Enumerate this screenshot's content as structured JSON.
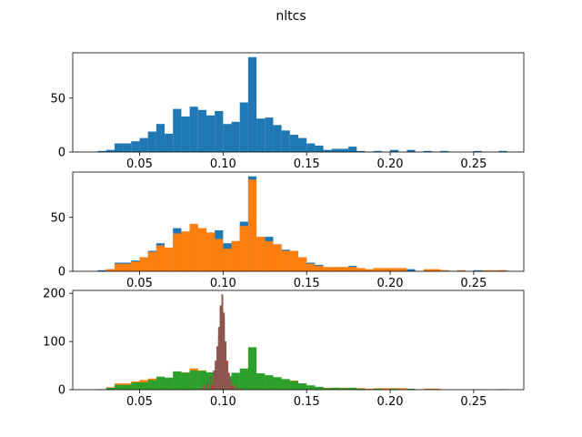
{
  "figure": {
    "title": "nltcs"
  },
  "chart_data": [
    {
      "type": "histogram",
      "panel": 1,
      "xlim": [
        0.01,
        0.28
      ],
      "ylim": [
        0,
        92
      ],
      "xticks": [
        "0.05",
        "0.10",
        "0.15",
        "0.20",
        "0.25"
      ],
      "yticks": [
        "0",
        "50"
      ],
      "series": [
        {
          "color": "#1f77b4",
          "bin_width": 0.005,
          "bins": [
            [
              0.025,
              1
            ],
            [
              0.03,
              2
            ],
            [
              0.035,
              8
            ],
            [
              0.04,
              8
            ],
            [
              0.045,
              10
            ],
            [
              0.05,
              13
            ],
            [
              0.055,
              19
            ],
            [
              0.06,
              26
            ],
            [
              0.065,
              17
            ],
            [
              0.07,
              40
            ],
            [
              0.075,
              33
            ],
            [
              0.08,
              42
            ],
            [
              0.085,
              39
            ],
            [
              0.09,
              34
            ],
            [
              0.095,
              38
            ],
            [
              0.1,
              26
            ],
            [
              0.105,
              28
            ],
            [
              0.11,
              46
            ],
            [
              0.115,
              88
            ],
            [
              0.12,
              31
            ],
            [
              0.125,
              32
            ],
            [
              0.13,
              25
            ],
            [
              0.135,
              20
            ],
            [
              0.14,
              16
            ],
            [
              0.145,
              13
            ],
            [
              0.15,
              8
            ],
            [
              0.155,
              6
            ],
            [
              0.16,
              2
            ],
            [
              0.165,
              3
            ],
            [
              0.17,
              3
            ],
            [
              0.175,
              5
            ],
            [
              0.18,
              1
            ],
            [
              0.19,
              1
            ],
            [
              0.2,
              2
            ],
            [
              0.21,
              2
            ],
            [
              0.22,
              1
            ],
            [
              0.23,
              1
            ],
            [
              0.25,
              1
            ],
            [
              0.265,
              1
            ]
          ]
        }
      ]
    },
    {
      "type": "histogram",
      "panel": 2,
      "xlim": [
        0.01,
        0.28
      ],
      "ylim": [
        0,
        92
      ],
      "xticks": [
        "0.05",
        "0.10",
        "0.15",
        "0.20",
        "0.25"
      ],
      "yticks": [
        "0",
        "50"
      ],
      "series": [
        {
          "color": "#1f77b4",
          "bin_width": 0.005,
          "bins": [
            [
              0.025,
              1
            ],
            [
              0.03,
              2
            ],
            [
              0.035,
              8
            ],
            [
              0.04,
              8
            ],
            [
              0.045,
              10
            ],
            [
              0.05,
              13
            ],
            [
              0.055,
              19
            ],
            [
              0.06,
              26
            ],
            [
              0.065,
              17
            ],
            [
              0.07,
              40
            ],
            [
              0.075,
              33
            ],
            [
              0.08,
              42
            ],
            [
              0.085,
              39
            ],
            [
              0.09,
              34
            ],
            [
              0.095,
              38
            ],
            [
              0.1,
              26
            ],
            [
              0.105,
              28
            ],
            [
              0.11,
              46
            ],
            [
              0.115,
              88
            ],
            [
              0.12,
              31
            ],
            [
              0.125,
              32
            ],
            [
              0.13,
              25
            ],
            [
              0.135,
              20
            ],
            [
              0.14,
              16
            ],
            [
              0.145,
              13
            ],
            [
              0.15,
              8
            ],
            [
              0.155,
              6
            ],
            [
              0.16,
              2
            ],
            [
              0.165,
              3
            ],
            [
              0.17,
              3
            ],
            [
              0.175,
              5
            ],
            [
              0.18,
              1
            ],
            [
              0.19,
              1
            ],
            [
              0.2,
              2
            ],
            [
              0.21,
              2
            ],
            [
              0.22,
              1
            ],
            [
              0.23,
              1
            ],
            [
              0.25,
              1
            ],
            [
              0.265,
              1
            ]
          ]
        },
        {
          "color": "#ff7f0e",
          "bin_width": 0.005,
          "bins": [
            [
              0.03,
              2
            ],
            [
              0.035,
              7
            ],
            [
              0.04,
              7
            ],
            [
              0.045,
              9
            ],
            [
              0.05,
              13
            ],
            [
              0.055,
              18
            ],
            [
              0.06,
              24
            ],
            [
              0.065,
              22
            ],
            [
              0.07,
              35
            ],
            [
              0.075,
              37
            ],
            [
              0.08,
              44
            ],
            [
              0.085,
              40
            ],
            [
              0.09,
              36
            ],
            [
              0.095,
              30
            ],
            [
              0.1,
              21
            ],
            [
              0.105,
              28
            ],
            [
              0.11,
              42
            ],
            [
              0.115,
              85
            ],
            [
              0.12,
              32
            ],
            [
              0.125,
              28
            ],
            [
              0.13,
              25
            ],
            [
              0.135,
              19
            ],
            [
              0.14,
              19
            ],
            [
              0.145,
              13
            ],
            [
              0.15,
              7
            ],
            [
              0.155,
              5
            ],
            [
              0.16,
              4
            ],
            [
              0.165,
              4
            ],
            [
              0.17,
              4
            ],
            [
              0.175,
              4
            ],
            [
              0.18,
              3
            ],
            [
              0.185,
              2
            ],
            [
              0.19,
              3
            ],
            [
              0.195,
              3
            ],
            [
              0.2,
              3
            ],
            [
              0.205,
              3
            ],
            [
              0.22,
              2
            ],
            [
              0.225,
              2
            ],
            [
              0.23,
              1
            ],
            [
              0.24,
              1
            ],
            [
              0.255,
              1
            ],
            [
              0.26,
              1
            ],
            [
              0.265,
              1
            ]
          ]
        }
      ]
    },
    {
      "type": "histogram",
      "panel": 3,
      "xlim": [
        0.01,
        0.28
      ],
      "ylim": [
        0,
        206
      ],
      "xticks": [
        "0.05",
        "0.10",
        "0.15",
        "0.20",
        "0.25"
      ],
      "yticks": [
        "0",
        "100",
        "200"
      ],
      "series": [
        {
          "color": "#ff7f0e",
          "bin_width": 0.005,
          "bins": [
            [
              0.03,
              5
            ],
            [
              0.035,
              13
            ],
            [
              0.04,
              13
            ],
            [
              0.045,
              17
            ],
            [
              0.05,
              20
            ],
            [
              0.055,
              23
            ],
            [
              0.06,
              24
            ],
            [
              0.065,
              22
            ],
            [
              0.07,
              35
            ],
            [
              0.075,
              36
            ],
            [
              0.08,
              44
            ],
            [
              0.085,
              40
            ],
            [
              0.09,
              36
            ],
            [
              0.095,
              30
            ],
            [
              0.1,
              21
            ],
            [
              0.105,
              28
            ],
            [
              0.11,
              42
            ],
            [
              0.115,
              85
            ],
            [
              0.12,
              32
            ],
            [
              0.125,
              28
            ],
            [
              0.13,
              25
            ],
            [
              0.135,
              19
            ],
            [
              0.14,
              19
            ],
            [
              0.145,
              13
            ],
            [
              0.15,
              7
            ],
            [
              0.155,
              5
            ],
            [
              0.16,
              4
            ],
            [
              0.165,
              4
            ],
            [
              0.17,
              4
            ],
            [
              0.175,
              4
            ],
            [
              0.18,
              3
            ],
            [
              0.185,
              2
            ],
            [
              0.19,
              3
            ],
            [
              0.195,
              3
            ],
            [
              0.2,
              3
            ],
            [
              0.205,
              3
            ],
            [
              0.22,
              2
            ],
            [
              0.225,
              2
            ]
          ]
        },
        {
          "color": "#2ca02c",
          "bin_width": 0.005,
          "bins": [
            [
              0.025,
              1
            ],
            [
              0.03,
              4
            ],
            [
              0.035,
              10
            ],
            [
              0.04,
              10
            ],
            [
              0.045,
              15
            ],
            [
              0.05,
              15
            ],
            [
              0.055,
              20
            ],
            [
              0.06,
              27
            ],
            [
              0.065,
              25
            ],
            [
              0.07,
              38
            ],
            [
              0.075,
              35
            ],
            [
              0.08,
              40
            ],
            [
              0.085,
              39
            ],
            [
              0.09,
              36
            ],
            [
              0.095,
              37
            ],
            [
              0.1,
              28
            ],
            [
              0.105,
              35
            ],
            [
              0.11,
              44
            ],
            [
              0.115,
              88
            ],
            [
              0.12,
              34
            ],
            [
              0.125,
              30
            ],
            [
              0.13,
              26
            ],
            [
              0.135,
              22
            ],
            [
              0.14,
              18
            ],
            [
              0.145,
              13
            ],
            [
              0.15,
              9
            ],
            [
              0.155,
              6
            ],
            [
              0.16,
              3
            ],
            [
              0.165,
              4
            ],
            [
              0.17,
              3
            ],
            [
              0.175,
              4
            ],
            [
              0.18,
              2
            ],
            [
              0.19,
              2
            ],
            [
              0.2,
              2
            ],
            [
              0.21,
              2
            ],
            [
              0.25,
              1
            ],
            [
              0.265,
              1
            ]
          ]
        },
        {
          "color": "#d62728",
          "bin_width": 0.001,
          "bins": [
            [
              0.092,
              5
            ],
            [
              0.093,
              10
            ],
            [
              0.094,
              20
            ],
            [
              0.095,
              40
            ],
            [
              0.096,
              70
            ],
            [
              0.097,
              110
            ],
            [
              0.098,
              170
            ],
            [
              0.099,
              190
            ],
            [
              0.1,
              150
            ],
            [
              0.101,
              100
            ],
            [
              0.102,
              60
            ],
            [
              0.103,
              35
            ],
            [
              0.104,
              18
            ],
            [
              0.105,
              8
            ],
            [
              0.106,
              4
            ]
          ]
        },
        {
          "color": "#9467bd",
          "bin_width": 0.001,
          "bins": [
            [
              0.095,
              20
            ],
            [
              0.096,
              45
            ],
            [
              0.097,
              95
            ],
            [
              0.098,
              150
            ],
            [
              0.099,
              195
            ],
            [
              0.1,
              140
            ],
            [
              0.101,
              80
            ],
            [
              0.102,
              40
            ],
            [
              0.103,
              20
            ],
            [
              0.104,
              8
            ]
          ]
        },
        {
          "color": "#8c564b",
          "bin_width": 0.001,
          "bins": [
            [
              0.086,
              4
            ],
            [
              0.088,
              10
            ],
            [
              0.09,
              15
            ],
            [
              0.092,
              28
            ],
            [
              0.094,
              40
            ],
            [
              0.095,
              60
            ],
            [
              0.096,
              90
            ],
            [
              0.097,
              130
            ],
            [
              0.098,
              175
            ],
            [
              0.099,
              198
            ],
            [
              0.1,
              160
            ],
            [
              0.101,
              100
            ],
            [
              0.102,
              55
            ],
            [
              0.103,
              32
            ],
            [
              0.104,
              20
            ],
            [
              0.106,
              10
            ],
            [
              0.108,
              5
            ],
            [
              0.11,
              3
            ]
          ]
        }
      ]
    }
  ]
}
